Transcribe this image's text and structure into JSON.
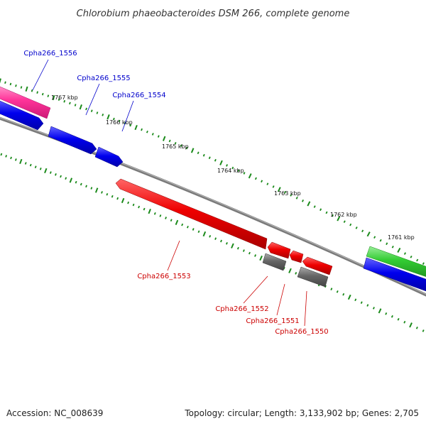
{
  "title": "Chlorobium phaeobacteroides DSM 266, complete genome",
  "footer": {
    "accession": "Accession: NC_008639",
    "summary": "Topology: circular; Length: 3,133,902 bp; Genes: 2,705"
  },
  "colors": {
    "backbone": "#7a7a7a",
    "tick": "#1a8a1a",
    "forward_label": "#0000cc",
    "reverse_label": "#cc0000",
    "gene_pink": "#ff3399",
    "gene_blue": "#0000ee",
    "gene_red": "#ee0000",
    "gene_gray": "#666666",
    "gene_green": "#33cc33"
  },
  "scale_labels": [
    "1767 kbp",
    "1766 kbp",
    "1765 kbp",
    "1764 kbp",
    "1763 kbp",
    "1762 kbp",
    "1761 kbp"
  ],
  "genes": {
    "forward": [
      "Cpha266_1556",
      "Cpha266_1555",
      "Cpha266_1554"
    ],
    "reverse": [
      "Cpha266_1553",
      "Cpha266_1552",
      "Cpha266_1551",
      "Cpha266_1550"
    ]
  }
}
